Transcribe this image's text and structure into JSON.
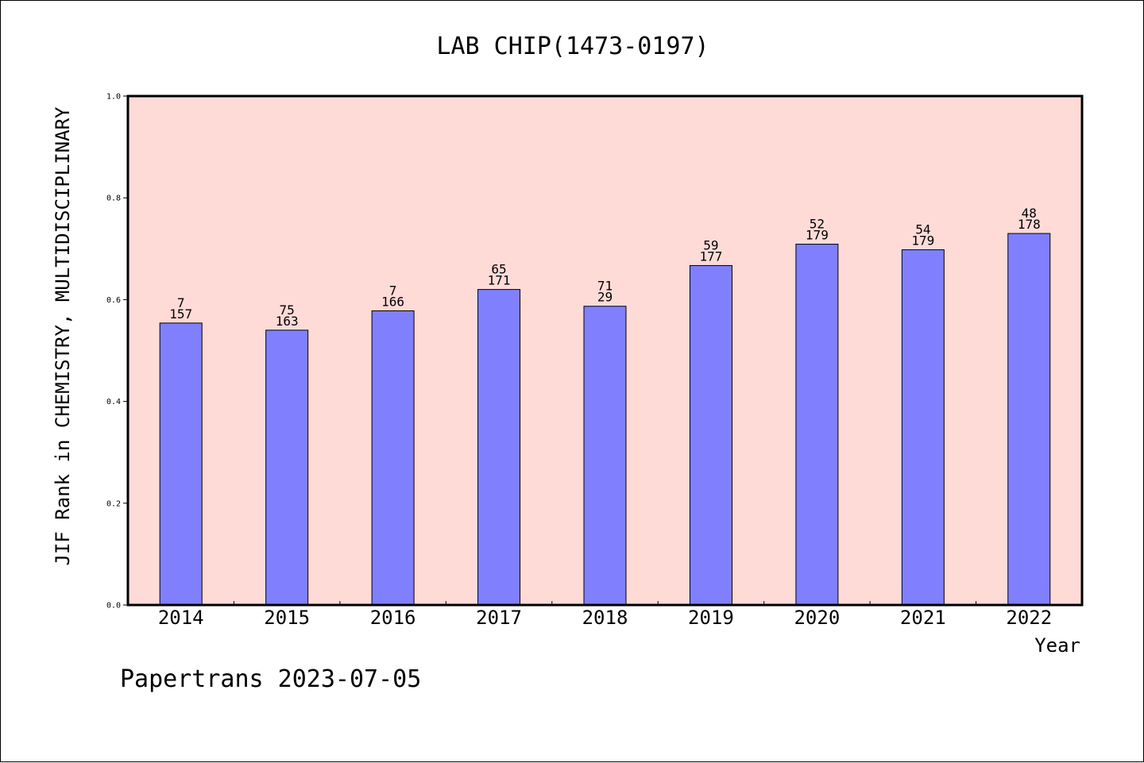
{
  "footer": "Papertrans 2023-07-05",
  "chart_data": {
    "type": "bar",
    "title": "LAB CHIP(1473-0197)",
    "xlabel": "Year",
    "ylabel": "JIF Rank in CHEMISTRY, MULTIDISCIPLINARY",
    "ylim": [
      0,
      1.0
    ],
    "yticks": [
      "0.0",
      "0.2",
      "0.4",
      "0.6",
      "0.8",
      "1.0"
    ],
    "grid": false,
    "categories": [
      "2014",
      "2015",
      "2016",
      "2017",
      "2018",
      "2019",
      "2020",
      "2021",
      "2022"
    ],
    "values": [
      0.554,
      0.54,
      0.578,
      0.62,
      0.587,
      0.667,
      0.709,
      0.698,
      0.73
    ],
    "labels_top": [
      "7",
      "75",
      "7",
      "65",
      "71",
      "59",
      "52",
      "54",
      "48"
    ],
    "labels_bottom": [
      "157",
      "163",
      "166",
      "171",
      "29",
      "177",
      "179",
      "179",
      "178"
    ],
    "colors": {
      "bar": "#8080ff",
      "plot_bg": "#ffdbd8",
      "axis": "#000000"
    }
  }
}
